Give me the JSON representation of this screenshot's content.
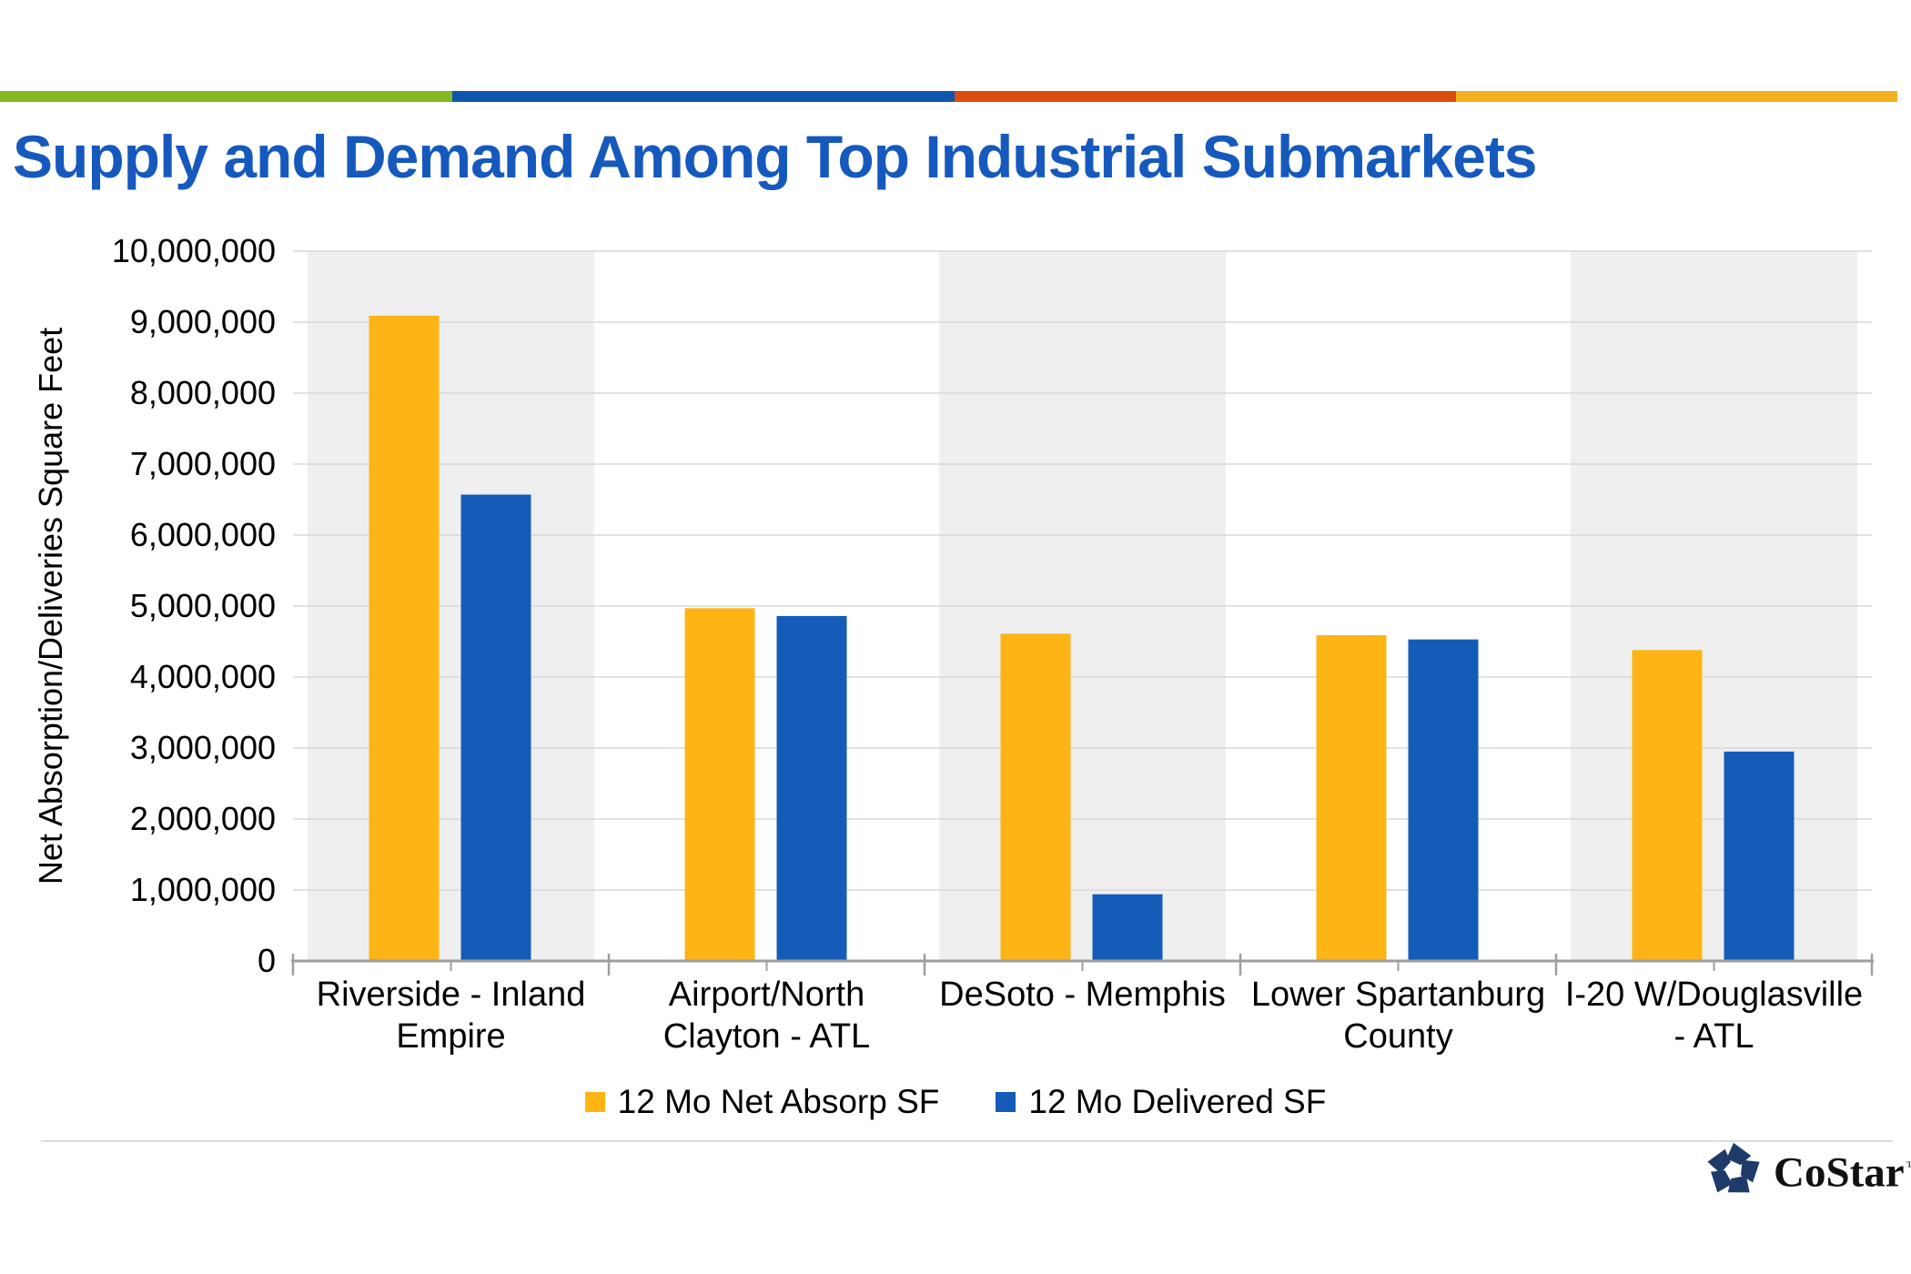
{
  "title": "Supply and Demand Among Top Industrial Submarkets",
  "title_color": "#1659BD",
  "accent_stripe": {
    "colors": [
      "#86B81F",
      "#1156AE",
      "#DB4D0E",
      "#F3B01D"
    ],
    "fractions": [
      0.2367,
      0.2629,
      0.2624,
      0.231
    ]
  },
  "chart_data": {
    "type": "bar",
    "title": "Supply and Demand Among Top Industrial Submarkets",
    "xlabel": "",
    "ylabel": "Net Absorption/Deliveries Square Feet",
    "ylim": [
      0,
      10000000
    ],
    "ytick_step": 1000000,
    "ytick_labels": [
      "0",
      "1,000,000",
      "2,000,000",
      "3,000,000",
      "4,000,000",
      "5,000,000",
      "6,000,000",
      "7,000,000",
      "8,000,000",
      "9,000,000",
      "10,000,000"
    ],
    "grid": true,
    "legend_position": "bottom",
    "categories": [
      "Riverside - Inland Empire",
      "Airport/North Clayton - ATL",
      "DeSoto - Memphis",
      "Lower Spartanburg County",
      "I-20 W/Douglasville - ATL"
    ],
    "category_label_lines": [
      [
        "Riverside - Inland",
        "Empire"
      ],
      [
        "Airport/North",
        "Clayton - ATL"
      ],
      [
        "DeSoto - Memphis"
      ],
      [
        "Lower Spartanburg",
        "County"
      ],
      [
        "I-20 W/Douglasville",
        "- ATL"
      ]
    ],
    "series": [
      {
        "name": "12 Mo Net Absorp SF",
        "color": "#FDB414",
        "values": [
          9090000,
          4970000,
          4610000,
          4590000,
          4380000
        ]
      },
      {
        "name": "12 Mo Delivered SF",
        "color": "#155CB8",
        "values": [
          6570000,
          4860000,
          940000,
          4530000,
          2950000
        ]
      }
    ],
    "plot_band_color": "#EFEFEF",
    "gridline_color": "#D9D9D9",
    "axis_color": "#9E9E9E",
    "label_color": "#000000"
  },
  "branding": {
    "logo_text": "CoStar",
    "trademark": "™",
    "logo_mark_color": "#1E3A68"
  }
}
